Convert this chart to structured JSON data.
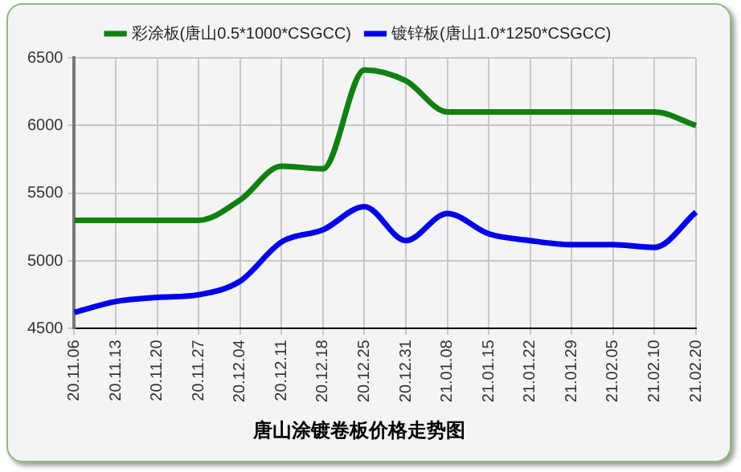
{
  "chart_data": {
    "type": "line",
    "title": "唐山涂镀卷板价格走势图",
    "categories": [
      "20.11.06",
      "20.11.13",
      "20.11.20",
      "20.11.27",
      "20.12.04",
      "20.12.11",
      "20.12.18",
      "20.12.25",
      "20.12.31",
      "21.01.08",
      "21.01.15",
      "21.01.22",
      "21.01.29",
      "21.02.05",
      "21.02.10",
      "21.02.20"
    ],
    "series": [
      {
        "name": "彩涂板(唐山0.5*1000*CSGCC)",
        "color": "#108010",
        "values": [
          5300,
          5300,
          5300,
          5300,
          5450,
          5700,
          5680,
          6410,
          6330,
          6100,
          6100,
          6100,
          6100,
          6100,
          6100,
          6000
        ]
      },
      {
        "name": "镀锌板(唐山1.0*1250*CSGCC)",
        "color": "#0000ee",
        "values": [
          4620,
          4700,
          4730,
          4750,
          4850,
          5140,
          5230,
          5400,
          5150,
          5350,
          5200,
          5150,
          5120,
          5120,
          5100,
          5360
        ]
      }
    ],
    "ylim": [
      4500,
      6500
    ],
    "yticks": [
      4500,
      5000,
      5500,
      6000,
      6500
    ],
    "grid": true,
    "legend": "top",
    "marker": "none",
    "line_style": "solid"
  }
}
